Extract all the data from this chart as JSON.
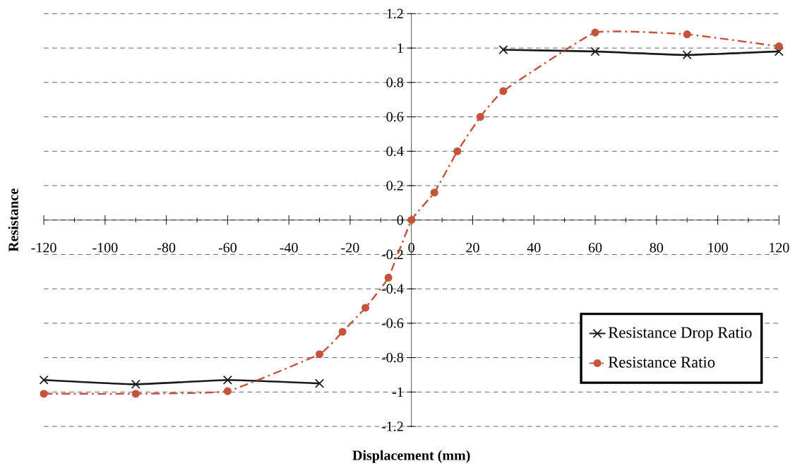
{
  "chart_data": {
    "type": "line",
    "xlabel": "Displacement (mm)",
    "ylabel": "Resistance",
    "xlim": [
      -120,
      120
    ],
    "ylim": [
      -1.2,
      1.2
    ],
    "xticks": [
      -120,
      -100,
      -80,
      -60,
      -40,
      -20,
      0,
      20,
      40,
      60,
      80,
      100,
      120
    ],
    "yticks": [
      -1.2,
      -1,
      -0.8,
      -0.6,
      -0.4,
      -0.2,
      0,
      0.2,
      0.4,
      0.6,
      0.8,
      1,
      1.2
    ],
    "grid": "y",
    "legend": "bottom right",
    "series": [
      {
        "name": "Resistance Drop Ratio",
        "color": "#1a1a1a",
        "marker": "cross",
        "line_style": "solid",
        "x": [
          -120,
          -90,
          -60,
          -30,
          0,
          30,
          60,
          90,
          120
        ],
        "values": [
          -0.93,
          -0.955,
          -0.93,
          -0.95,
          null,
          0.99,
          0.98,
          0.96,
          0.98
        ]
      },
      {
        "name": "Resistance Ratio",
        "color": "#c4533a",
        "marker": "circle",
        "line_style": "dashdot",
        "x": [
          -120,
          -90,
          -60,
          -30,
          -22.5,
          -15,
          -7.5,
          0,
          7.5,
          15,
          22.5,
          30,
          60,
          90,
          120
        ],
        "values": [
          -1.01,
          -1.01,
          -0.995,
          -0.78,
          -0.65,
          -0.51,
          -0.335,
          0,
          0.16,
          0.4,
          0.6,
          0.75,
          1.09,
          1.08,
          1.01
        ]
      }
    ]
  }
}
